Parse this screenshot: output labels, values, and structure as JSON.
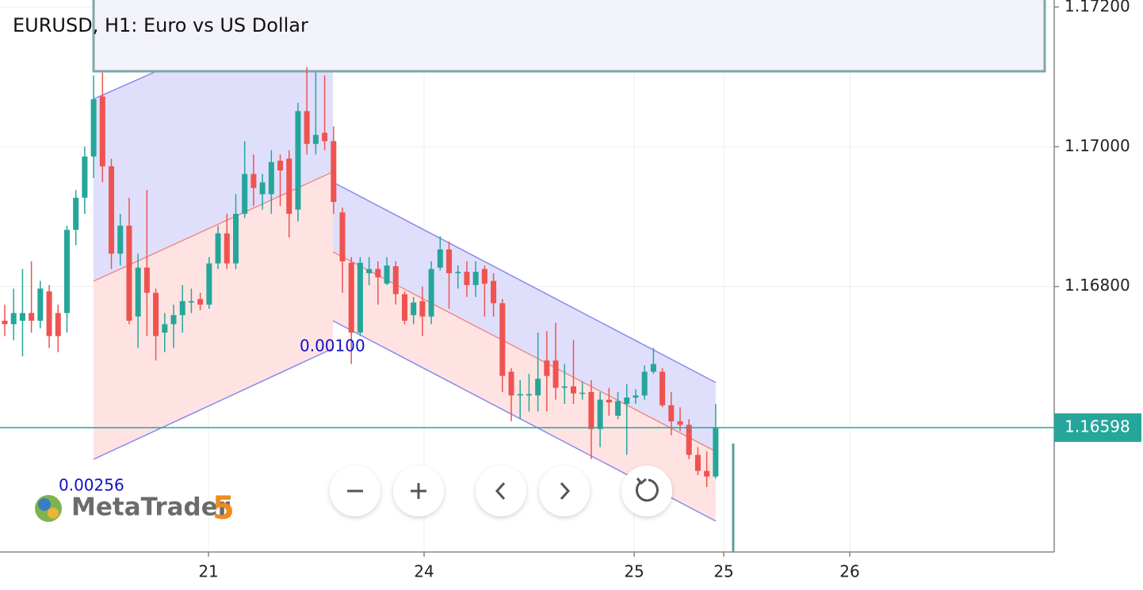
{
  "chart_data": {
    "type": "candlestick",
    "title": "EURUSD, H1: Euro vs US Dollar",
    "annotations": [
      "0.00100",
      "0.00256"
    ],
    "logo": {
      "name": "MetaTrader",
      "version": "5"
    },
    "up_color": "#26a69a",
    "down_color": "#ef5350",
    "grid": true,
    "price_line": 1.16598,
    "xlim": [
      -0.535,
      118.1
    ],
    "xticks": [
      {
        "value": 22.93,
        "label": "21"
      },
      {
        "value": 47.19,
        "label": "24"
      },
      {
        "value": 70.83,
        "label": "25"
      },
      {
        "value": 80.91,
        "label": "25"
      },
      {
        "value": 95.09,
        "label": "26"
      }
    ],
    "ylim": [
      1.1642,
      1.1721
    ],
    "yticks": [
      {
        "value": 1.168,
        "label": "1.16800"
      },
      {
        "value": 1.17,
        "label": "1.17000"
      },
      {
        "value": 1.172,
        "label": "1.17200"
      }
    ],
    "x": [
      0,
      1,
      2,
      3,
      4,
      5,
      6,
      7,
      8,
      9,
      10,
      11,
      12,
      13,
      14,
      15,
      16,
      17,
      18,
      19,
      20,
      21,
      22,
      23,
      24,
      25,
      26,
      27,
      28,
      29,
      30,
      31,
      32,
      33,
      34,
      35,
      36,
      37,
      38,
      39,
      40,
      41,
      42,
      43,
      44,
      45,
      46,
      47,
      48,
      49,
      50,
      51,
      52,
      53,
      54,
      55,
      56,
      57,
      58,
      59,
      60,
      61,
      62,
      63,
      64,
      65,
      66,
      67,
      68,
      69,
      70,
      71,
      72,
      73,
      74,
      75,
      76,
      77,
      78,
      79,
      80
    ],
    "open": [
      1.16751,
      1.16746,
      1.16751,
      1.16762,
      1.16751,
      1.16793,
      1.16762,
      1.16762,
      1.16881,
      1.16927,
      1.16986,
      1.17072,
      1.16972,
      1.16847,
      1.16887,
      1.16757,
      1.16827,
      1.16791,
      1.16734,
      1.16746,
      1.16759,
      1.16777,
      1.16782,
      1.16774,
      1.16833,
      1.16876,
      1.16833,
      1.16904,
      1.16961,
      1.16932,
      1.16932,
      1.1698,
      1.16983,
      1.1691,
      1.17051,
      1.17004,
      1.1702,
      1.17008,
      1.16906,
      1.16834,
      1.16734,
      1.16819,
      1.16825,
      1.16804,
      1.16829,
      1.16789,
      1.16759,
      1.16779,
      1.16757,
      1.16827,
      1.16853,
      1.16819,
      1.16821,
      1.16802,
      1.16825,
      1.16808,
      1.16776,
      1.16678,
      1.16644,
      1.16644,
      1.16644,
      1.16694,
      1.16694,
      1.16655,
      1.16657,
      1.16647,
      1.16649,
      1.16596,
      1.16638,
      1.16615,
      1.16632,
      1.16641,
      1.16644,
      1.16678,
      1.16678,
      1.1663,
      1.16607,
      1.16602,
      1.16559,
      1.16536,
      1.16528
    ],
    "high": [
      1.16774,
      1.16797,
      1.16825,
      1.16836,
      1.16808,
      1.16802,
      1.16774,
      1.16887,
      1.16938,
      1.17,
      1.17102,
      1.17106,
      1.16983,
      1.16904,
      1.16927,
      1.16847,
      1.16938,
      1.16797,
      1.16762,
      1.16774,
      1.16802,
      1.16797,
      1.16791,
      1.16842,
      1.16887,
      1.16904,
      1.16932,
      1.17008,
      1.16989,
      1.16961,
      1.16995,
      1.16989,
      1.16995,
      1.17063,
      1.17114,
      1.17106,
      1.17102,
      1.17029,
      1.16913,
      1.16842,
      1.16842,
      1.16842,
      1.16836,
      1.16842,
      1.16836,
      1.16793,
      1.16785,
      1.168,
      1.16836,
      1.16872,
      1.16864,
      1.1683,
      1.16836,
      1.16836,
      1.1683,
      1.16819,
      1.16782,
      1.16683,
      1.16666,
      1.16675,
      1.16734,
      1.16736,
      1.16748,
      1.16689,
      1.16723,
      1.16664,
      1.16666,
      1.16649,
      1.16655,
      1.16649,
      1.1666,
      1.16653,
      1.16687,
      1.16712,
      1.16683,
      1.16649,
      1.16627,
      1.1661,
      1.1657,
      1.16564,
      1.16632
    ],
    "low": [
      1.16729,
      1.16723,
      1.167,
      1.16734,
      1.1674,
      1.16712,
      1.16706,
      1.16734,
      1.16859,
      1.16904,
      1.16955,
      1.16949,
      1.16825,
      1.1683,
      1.16746,
      1.16712,
      1.16729,
      1.16694,
      1.16706,
      1.16712,
      1.16734,
      1.16762,
      1.16766,
      1.16768,
      1.16825,
      1.16825,
      1.16825,
      1.16898,
      1.16915,
      1.1691,
      1.16904,
      1.16915,
      1.1687,
      1.16893,
      1.16989,
      1.16989,
      1.16995,
      1.16904,
      1.16791,
      1.16689,
      1.16729,
      1.16802,
      1.16774,
      1.16802,
      1.16774,
      1.16746,
      1.16746,
      1.16729,
      1.16746,
      1.16823,
      1.16768,
      1.16797,
      1.16785,
      1.16785,
      1.16757,
      1.16757,
      1.16649,
      1.16607,
      1.1661,
      1.16621,
      1.16621,
      1.16621,
      1.16638,
      1.16632,
      1.16632,
      1.16638,
      1.16553,
      1.1657,
      1.16615,
      1.1661,
      1.16559,
      1.16632,
      1.16638,
      1.16675,
      1.16627,
      1.16587,
      1.16593,
      1.16553,
      1.1653,
      1.16513,
      1.16525
    ],
    "close": [
      1.16746,
      1.16762,
      1.16762,
      1.16751,
      1.16797,
      1.16729,
      1.16729,
      1.16881,
      1.16927,
      1.16986,
      1.17068,
      1.16972,
      1.16847,
      1.16887,
      1.16751,
      1.16827,
      1.16791,
      1.16729,
      1.16746,
      1.16759,
      1.16779,
      1.16779,
      1.16774,
      1.16833,
      1.16876,
      1.16833,
      1.16904,
      1.16961,
      1.16941,
      1.16949,
      1.16978,
      1.16966,
      1.16904,
      1.17051,
      1.17004,
      1.17017,
      1.17008,
      1.16921,
      1.16836,
      1.16734,
      1.16834,
      1.16825,
      1.16813,
      1.1683,
      1.16789,
      1.16751,
      1.16777,
      1.16757,
      1.16825,
      1.16853,
      1.16819,
      1.16821,
      1.16802,
      1.16821,
      1.16804,
      1.16776,
      1.16672,
      1.16644,
      1.16646,
      1.16646,
      1.16668,
      1.16672,
      1.16655,
      1.16657,
      1.16647,
      1.16648,
      1.16596,
      1.16638,
      1.16634,
      1.16636,
      1.16641,
      1.16644,
      1.16678,
      1.16689,
      1.1663,
      1.16607,
      1.16602,
      1.16559,
      1.16536,
      1.16528,
      1.16598
    ]
  }
}
